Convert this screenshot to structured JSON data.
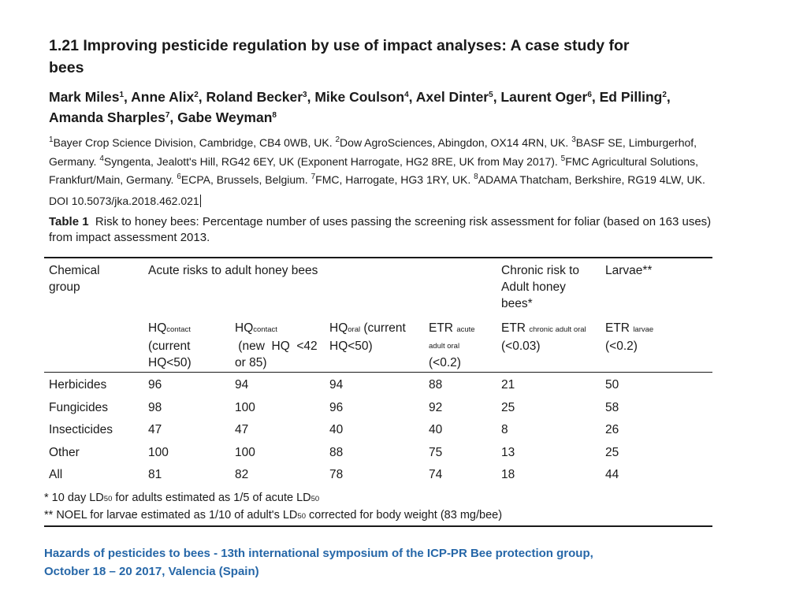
{
  "paper": {
    "title_line1": "1.21 Improving pesticide regulation by use of impact analyses:  A case study for",
    "title_line2": "bees",
    "authors": [
      {
        "name": "Mark Miles",
        "sup": "1",
        "sep": ", "
      },
      {
        "name": "Anne Alix",
        "sup": "2",
        "sep": ", "
      },
      {
        "name": "Roland Becker",
        "sup": "3",
        "sep": ", "
      },
      {
        "name": "Mike Coulson",
        "sup": "4",
        "sep": ", "
      },
      {
        "name": "Axel Dinter",
        "sup": "5",
        "sep": ", "
      },
      {
        "name": "Laurent Oger",
        "sup": "6",
        "sep": ", "
      },
      {
        "name": "Ed Pilling",
        "sup": "2",
        "sep": ", "
      },
      {
        "name": "Amanda Sharples",
        "sup": "7",
        "sep": ", "
      },
      {
        "name": "Gabe Weyman",
        "sup": "8",
        "sep": ""
      }
    ],
    "affiliations": [
      {
        "sup": "1",
        "text": "Bayer Crop Science Division, Cambridge, CB4 0WB, UK. "
      },
      {
        "sup": "2",
        "text": "Dow AgroSciences, Abingdon, OX14 4RN, UK. "
      },
      {
        "sup": "3",
        "text": "BASF SE, Limburgerhof, Germany. "
      },
      {
        "sup": "4",
        "text": "Syngenta, Jealott's Hill, RG42 6EY, UK (Exponent Harrogate, HG2 8RE, UK from May 2017). "
      },
      {
        "sup": "5",
        "text": "FMC Agricultural Solutions, Frankfurt/Main, Germany. "
      },
      {
        "sup": "6",
        "text": "ECPA, Brussels, Belgium. "
      },
      {
        "sup": "7",
        "text": "FMC, Harrogate, HG3 1RY, UK. "
      },
      {
        "sup": "8",
        "text": "ADAMA Thatcham, Berkshire, RG19 4LW, UK."
      }
    ],
    "doi": "DOI 10.5073/jka.2018.462.021"
  },
  "table": {
    "caption_label": "Table 1",
    "caption_text": "Risk to honey bees: Percentage number of uses passing the screening risk assessment for foliar (based on 163 uses) from impact assessment 2013.",
    "head1": {
      "group_a": "Chemical",
      "group_b": "group",
      "acute": "Acute risks to adult honey bees",
      "chronic_a": "Chronic risk to",
      "chronic_b": "Adult honey",
      "chronic_c": "bees*",
      "larvae": "Larvae**"
    },
    "head2": {
      "hq1_main": "HQ",
      "hq1_sub": "contact",
      "hq1_l2": "(current",
      "hq1_l3": "HQ<50)",
      "hq2_main": "HQ",
      "hq2_sub": "contact",
      "hq2_l2": " (new  HQ  <42",
      "hq2_l3": "or 85)",
      "hq3_main": "HQ",
      "hq3_sub": "oral",
      "hq3_rest": " (current",
      "hq3_l2": "HQ<50)",
      "etr1_main": "ETR",
      "etr1_sub": "acute",
      "etr1_l2": "adult oral",
      "etr1_l3": "(<0.2)",
      "etr2_main": "ETR",
      "etr2_sub": "chronic adult oral",
      "etr2_l2": "(<0.03)",
      "etr3_main": "ETR",
      "etr3_sub": "larvae",
      "etr3_l2": "(<0.2)"
    },
    "rows": [
      {
        "group": "Herbicides",
        "v": [
          "96",
          "94",
          "94",
          "88",
          "21",
          "50"
        ]
      },
      {
        "group": "Fungicides",
        "v": [
          "98",
          "100",
          "96",
          "92",
          "25",
          "58"
        ]
      },
      {
        "group": "Insecticides",
        "v": [
          "47",
          "47",
          "40",
          "40",
          "8",
          "26"
        ]
      },
      {
        "group": "Other",
        "v": [
          "100",
          "100",
          "88",
          "75",
          "13",
          "25"
        ]
      },
      {
        "group": "All",
        "v": [
          "81",
          "82",
          "78",
          "74",
          "18",
          "44"
        ]
      }
    ],
    "footnote1_a": "* 10 day LD",
    "footnote1_sub1": "50",
    "footnote1_b": " for adults estimated as 1/5 of acute LD",
    "footnote1_sub2": "50",
    "footnote2_a": "** NOEL for larvae estimated as 1/10 of adult's LD",
    "footnote2_sub": "50",
    "footnote2_b": " corrected for body weight (83 mg/bee)"
  },
  "footer": {
    "line1": "Hazards of pesticides to bees - 13th international symposium of the ICP-PR Bee protection group,",
    "line2": "October 18 – 20 2017, Valencia (Spain)"
  }
}
